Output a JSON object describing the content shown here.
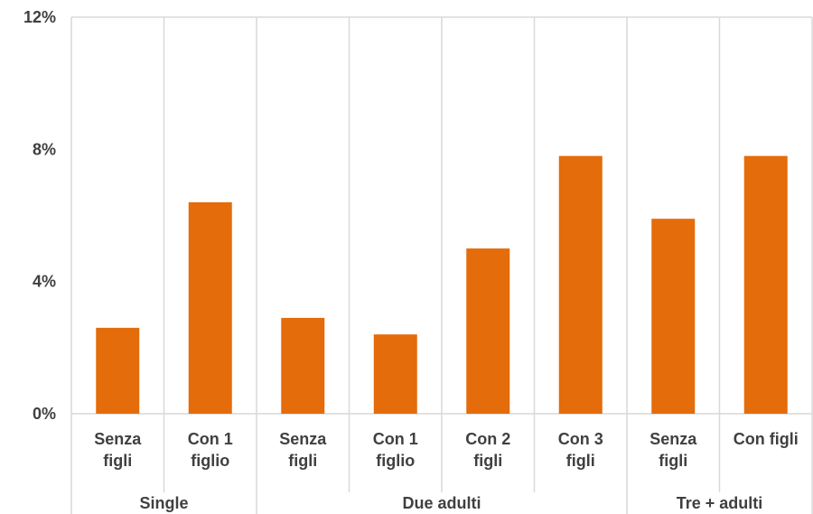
{
  "chart_data": {
    "type": "bar",
    "title": "",
    "xlabel": "",
    "ylabel": "",
    "ylim": [
      0,
      12
    ],
    "y_ticks": [
      "0%",
      "4%",
      "8%",
      "12%"
    ],
    "y_tick_values": [
      0,
      4,
      8,
      12
    ],
    "grid": "vertical separators between categories",
    "bar_color": "#E46C0A",
    "groups": [
      {
        "name": "Single",
        "span": 2
      },
      {
        "name": "Due adulti",
        "span": 4
      },
      {
        "name": "Tre + adulti",
        "span": 2
      }
    ],
    "categories": [
      [
        "Senza",
        "figli"
      ],
      [
        "Con 1",
        "figlio"
      ],
      [
        "Senza",
        "figli"
      ],
      [
        "Con 1",
        "figlio"
      ],
      [
        "Con 2",
        "figli"
      ],
      [
        "Con 3",
        "figli"
      ],
      [
        "Senza",
        "figli"
      ],
      [
        "Con figli"
      ]
    ],
    "values": [
      2.6,
      6.4,
      2.9,
      2.4,
      5.0,
      7.8,
      5.9,
      7.8
    ]
  }
}
